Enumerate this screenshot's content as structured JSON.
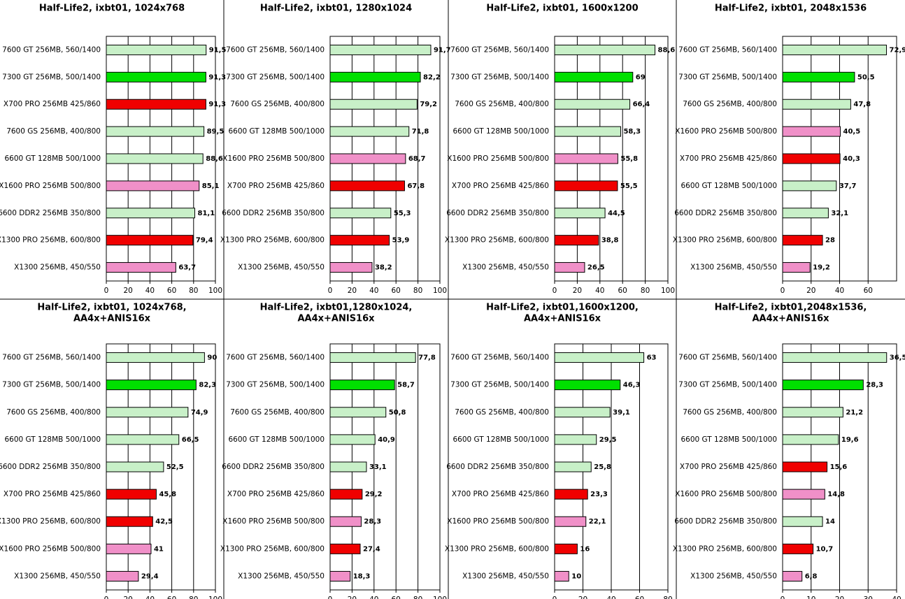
{
  "chart_data": [
    {
      "type": "bar",
      "title": [
        "Half-Life2, ixbt01, 1024x768"
      ],
      "categories": [
        "7600 GT 256MB, 560/1400",
        "7300 GT 256MB, 500/1400",
        "X700 PRO 256MB 425/860",
        "7600 GS 256MB, 400/800",
        "6600 GT 128MB 500/1000",
        "X1600 PRO 256MB 500/800",
        "6600 DDR2 256MB 350/800",
        "X1300 PRO 256MB, 600/800",
        "X1300 256MB, 450/550"
      ],
      "values": [
        91.5,
        91.3,
        91.3,
        89.5,
        88.6,
        85.1,
        81.1,
        79.4,
        63.7
      ],
      "value_labels": [
        "91,5",
        "91,3",
        "91,3",
        "89,5",
        "88,6",
        "85,1",
        "81,1",
        "79,4",
        "63,7"
      ],
      "colors": [
        "#c8f0c8",
        "#00e000",
        "#f00000",
        "#c8f0c8",
        "#c8f0c8",
        "#f090c8",
        "#c8f0c8",
        "#f00000",
        "#f090c8"
      ],
      "xlim": [
        0,
        100
      ],
      "xticks": [
        0,
        20,
        40,
        60,
        80,
        100
      ],
      "grid": true
    },
    {
      "type": "bar",
      "title": [
        "Half-Life2, ixbt01, 1280x1024"
      ],
      "categories": [
        "7600 GT 256MB, 560/1400",
        "7300 GT 256MB, 500/1400",
        "7600 GS 256MB, 400/800",
        "6600 GT 128MB 500/1000",
        "X1600 PRO 256MB 500/800",
        "X700 PRO 256MB 425/860",
        "6600 DDR2 256MB 350/800",
        "X1300 PRO 256MB, 600/800",
        "X1300 256MB, 450/550"
      ],
      "values": [
        91.7,
        82.2,
        79.2,
        71.8,
        68.7,
        67.8,
        55.3,
        53.9,
        38.2
      ],
      "value_labels": [
        "91,7",
        "82,2",
        "79,2",
        "71,8",
        "68,7",
        "67,8",
        "55,3",
        "53,9",
        "38,2"
      ],
      "colors": [
        "#c8f0c8",
        "#00e000",
        "#c8f0c8",
        "#c8f0c8",
        "#f090c8",
        "#f00000",
        "#c8f0c8",
        "#f00000",
        "#f090c8"
      ],
      "xlim": [
        0,
        100
      ],
      "xticks": [
        0,
        20,
        40,
        60,
        80,
        100
      ],
      "grid": true
    },
    {
      "type": "bar",
      "title": [
        "Half-Life2, ixbt01, 1600x1200"
      ],
      "categories": [
        "7600 GT 256MB, 560/1400",
        "7300 GT 256MB, 500/1400",
        "7600 GS 256MB, 400/800",
        "6600 GT 128MB 500/1000",
        "X1600 PRO 256MB 500/800",
        "X700 PRO 256MB 425/860",
        "6600 DDR2 256MB 350/800",
        "X1300 PRO 256MB, 600/800",
        "X1300 256MB, 450/550"
      ],
      "values": [
        88.6,
        69,
        66.4,
        58.3,
        55.8,
        55.5,
        44.5,
        38.8,
        26.5
      ],
      "value_labels": [
        "88,6",
        "69",
        "66,4",
        "58,3",
        "55,8",
        "55,5",
        "44,5",
        "38,8",
        "26,5"
      ],
      "colors": [
        "#c8f0c8",
        "#00e000",
        "#c8f0c8",
        "#c8f0c8",
        "#f090c8",
        "#f00000",
        "#c8f0c8",
        "#f00000",
        "#f090c8"
      ],
      "xlim": [
        0,
        100
      ],
      "xticks": [
        0,
        20,
        40,
        60,
        80,
        100
      ],
      "grid": true
    },
    {
      "type": "bar",
      "title": [
        "Half-Life2, ixbt01, 2048x1536"
      ],
      "categories": [
        "7600 GT 256MB, 560/1400",
        "7300 GT 256MB, 500/1400",
        "7600 GS 256MB, 400/800",
        "X1600 PRO 256MB 500/800",
        "X700 PRO 256MB 425/860",
        "6600 GT 128MB 500/1000",
        "6600 DDR2 256MB 350/800",
        "X1300 PRO 256MB, 600/800",
        "X1300 256MB, 450/550"
      ],
      "values": [
        72.9,
        50.5,
        47.8,
        40.5,
        40.3,
        37.7,
        32.1,
        28,
        19.2
      ],
      "value_labels": [
        "72,9",
        "50,5",
        "47,8",
        "40,5",
        "40,3",
        "37,7",
        "32,1",
        "28",
        "19,2"
      ],
      "colors": [
        "#c8f0c8",
        "#00e000",
        "#c8f0c8",
        "#f090c8",
        "#f00000",
        "#c8f0c8",
        "#c8f0c8",
        "#f00000",
        "#f090c8"
      ],
      "xlim": [
        0,
        80
      ],
      "xticks": [
        0,
        20,
        40,
        60
      ],
      "grid": true
    },
    {
      "type": "bar",
      "title": [
        "Half-Life2, ixbt01, 1024x768,",
        "AA4x+ANIS16x"
      ],
      "categories": [
        "7600 GT 256MB, 560/1400",
        "7300 GT 256MB, 500/1400",
        "7600 GS 256MB, 400/800",
        "6600 GT 128MB 500/1000",
        "6600 DDR2 256MB 350/800",
        "X700 PRO 256MB 425/860",
        "X1300 PRO 256MB, 600/800",
        "X1600 PRO 256MB 500/800",
        "X1300 256MB, 450/550"
      ],
      "values": [
        90,
        82.3,
        74.9,
        66.5,
        52.5,
        45.8,
        42.5,
        41,
        29.4
      ],
      "value_labels": [
        "90",
        "82,3",
        "74,9",
        "66,5",
        "52,5",
        "45,8",
        "42,5",
        "41",
        "29,4"
      ],
      "colors": [
        "#c8f0c8",
        "#00e000",
        "#c8f0c8",
        "#c8f0c8",
        "#c8f0c8",
        "#f00000",
        "#f00000",
        "#f090c8",
        "#f090c8"
      ],
      "xlim": [
        0,
        100
      ],
      "xticks": [
        0,
        20,
        40,
        60,
        80,
        100
      ],
      "grid": true
    },
    {
      "type": "bar",
      "title": [
        "Half-Life2, ixbt01,1280x1024,",
        "AA4x+ANIS16x"
      ],
      "categories": [
        "7600 GT 256MB, 560/1400",
        "7300 GT 256MB, 500/1400",
        "7600 GS 256MB, 400/800",
        "6600 GT 128MB 500/1000",
        "6600 DDR2 256MB 350/800",
        "X700 PRO 256MB 425/860",
        "X1600 PRO 256MB 500/800",
        "X1300 PRO 256MB, 600/800",
        "X1300 256MB, 450/550"
      ],
      "values": [
        77.8,
        58.7,
        50.8,
        40.9,
        33.1,
        29.2,
        28.3,
        27.4,
        18.3
      ],
      "value_labels": [
        "77,8",
        "58,7",
        "50,8",
        "40,9",
        "33,1",
        "29,2",
        "28,3",
        "27,4",
        "18,3"
      ],
      "colors": [
        "#c8f0c8",
        "#00e000",
        "#c8f0c8",
        "#c8f0c8",
        "#c8f0c8",
        "#f00000",
        "#f090c8",
        "#f00000",
        "#f090c8"
      ],
      "xlim": [
        0,
        100
      ],
      "xticks": [
        0,
        20,
        40,
        60,
        80,
        100
      ],
      "grid": true
    },
    {
      "type": "bar",
      "title": [
        "Half-Life2, ixbt01,1600x1200,",
        "AA4x+ANIS16x"
      ],
      "categories": [
        "7600 GT 256MB, 560/1400",
        "7300 GT 256MB, 500/1400",
        "7600 GS 256MB, 400/800",
        "6600 GT 128MB 500/1000",
        "6600 DDR2 256MB 350/800",
        "X700 PRO 256MB 425/860",
        "X1600 PRO 256MB 500/800",
        "X1300 PRO 256MB, 600/800",
        "X1300 256MB, 450/550"
      ],
      "values": [
        63,
        46.3,
        39.1,
        29.5,
        25.8,
        23.3,
        22.1,
        16,
        10
      ],
      "value_labels": [
        "63",
        "46,3",
        "39,1",
        "29,5",
        "25,8",
        "23,3",
        "22,1",
        "16",
        "10"
      ],
      "colors": [
        "#c8f0c8",
        "#00e000",
        "#c8f0c8",
        "#c8f0c8",
        "#c8f0c8",
        "#f00000",
        "#f090c8",
        "#f00000",
        "#f090c8"
      ],
      "xlim": [
        0,
        80
      ],
      "xticks": [
        0,
        20,
        40,
        60,
        80
      ],
      "grid": true
    },
    {
      "type": "bar",
      "title": [
        "Half-Life2, ixbt01,2048x1536,",
        "AA4x+ANIS16x"
      ],
      "categories": [
        "7600 GT 256MB, 560/1400",
        "7300 GT 256MB, 500/1400",
        "7600 GS 256MB, 400/800",
        "6600 GT 128MB 500/1000",
        "X700 PRO 256MB 425/860",
        "X1600 PRO 256MB 500/800",
        "6600 DDR2 256MB 350/800",
        "X1300 PRO 256MB, 600/800",
        "X1300 256MB, 450/550"
      ],
      "values": [
        36.5,
        28.3,
        21.2,
        19.6,
        15.6,
        14.8,
        14,
        10.7,
        6.8
      ],
      "value_labels": [
        "36,5",
        "28,3",
        "21,2",
        "19,6",
        "15,6",
        "14,8",
        "14",
        "10,7",
        "6,8"
      ],
      "colors": [
        "#c8f0c8",
        "#00e000",
        "#c8f0c8",
        "#c8f0c8",
        "#f00000",
        "#f090c8",
        "#c8f0c8",
        "#f00000",
        "#f090c8"
      ],
      "xlim": [
        0,
        40
      ],
      "xticks": [
        0,
        10,
        20,
        30,
        40
      ],
      "grid": true
    }
  ]
}
